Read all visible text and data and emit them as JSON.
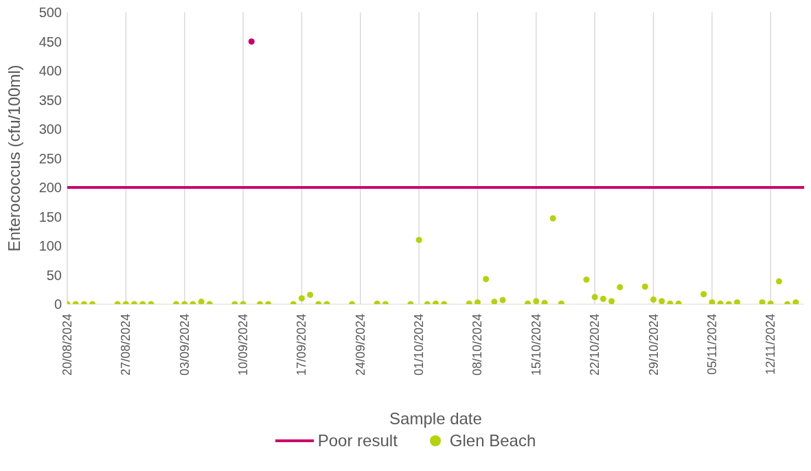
{
  "chart_data": {
    "type": "scatter",
    "xlabel": "Sample date",
    "ylabel": "Enterococcus (cfu/100ml)",
    "xlim": [
      "2024-08-20",
      "2024-11-16"
    ],
    "ylim": [
      0,
      500
    ],
    "yticks": [
      0,
      50,
      100,
      150,
      200,
      250,
      300,
      350,
      400,
      450,
      500
    ],
    "xticks": [
      {
        "value": "2024-08-20",
        "label": "20/08/2024"
      },
      {
        "value": "2024-08-27",
        "label": "27/08/2024"
      },
      {
        "value": "2024-09-03",
        "label": "03/09/2024"
      },
      {
        "value": "2024-09-10",
        "label": "10/09/2024"
      },
      {
        "value": "2024-09-17",
        "label": "17/09/2024"
      },
      {
        "value": "2024-09-24",
        "label": "24/09/2024"
      },
      {
        "value": "2024-10-01",
        "label": "01/10/2024"
      },
      {
        "value": "2024-10-08",
        "label": "08/10/2024"
      },
      {
        "value": "2024-10-15",
        "label": "15/10/2024"
      },
      {
        "value": "2024-10-22",
        "label": "22/10/2024"
      },
      {
        "value": "2024-10-29",
        "label": "29/10/2024"
      },
      {
        "value": "2024-11-05",
        "label": "05/11/2024"
      },
      {
        "value": "2024-11-12",
        "label": "12/11/2024"
      }
    ],
    "grid": "x",
    "legend": "bottom",
    "series": [
      {
        "name": "Poor result",
        "type": "line",
        "color": "#c8006e",
        "line_style": "solid",
        "x": [
          "2024-08-20",
          "2024-11-16"
        ],
        "values": [
          200,
          200
        ]
      },
      {
        "name": "Glen Beach",
        "marker": "circle",
        "color": "#b5d20a",
        "x": [
          "2024-08-20",
          "2024-08-21",
          "2024-08-22",
          "2024-08-23",
          "2024-08-26",
          "2024-08-27",
          "2024-08-28",
          "2024-08-29",
          "2024-08-30",
          "2024-09-02",
          "2024-09-03",
          "2024-09-04",
          "2024-09-05",
          "2024-09-06",
          "2024-09-09",
          "2024-09-10",
          "2024-09-11",
          "2024-09-12",
          "2024-09-13",
          "2024-09-16",
          "2024-09-17",
          "2024-09-18",
          "2024-09-19",
          "2024-09-20",
          "2024-09-23",
          "2024-09-26",
          "2024-09-27",
          "2024-09-30",
          "2024-10-01",
          "2024-10-02",
          "2024-10-03",
          "2024-10-04",
          "2024-10-07",
          "2024-10-08",
          "2024-10-09",
          "2024-10-10",
          "2024-10-11",
          "2024-10-14",
          "2024-10-15",
          "2024-10-16",
          "2024-10-17",
          "2024-10-18",
          "2024-10-21",
          "2024-10-22",
          "2024-10-23",
          "2024-10-24",
          "2024-10-25",
          "2024-10-28",
          "2024-10-29",
          "2024-10-30",
          "2024-10-31",
          "2024-11-01",
          "2024-11-04",
          "2024-11-05",
          "2024-11-06",
          "2024-11-07",
          "2024-11-08",
          "2024-11-11",
          "2024-11-12",
          "2024-11-13",
          "2024-11-14",
          "2024-11-15"
        ],
        "values": [
          0,
          0,
          0,
          0,
          0,
          0,
          0,
          0,
          0,
          0,
          0,
          0,
          4,
          0,
          0,
          0,
          450,
          0,
          0,
          0,
          10,
          16,
          0,
          0,
          0,
          1,
          0,
          0,
          110,
          0,
          1,
          0,
          1,
          3,
          43,
          4,
          7,
          1,
          5,
          2,
          147,
          1,
          42,
          12,
          9,
          5,
          29,
          30,
          8,
          5,
          1,
          1,
          17,
          3,
          1,
          0,
          3,
          3,
          1,
          39,
          0,
          3
        ],
        "colors": [
          "#b5d20a",
          "#b5d20a",
          "#b5d20a",
          "#b5d20a",
          "#b5d20a",
          "#b5d20a",
          "#b5d20a",
          "#b5d20a",
          "#b5d20a",
          "#b5d20a",
          "#b5d20a",
          "#b5d20a",
          "#b5d20a",
          "#b5d20a",
          "#b5d20a",
          "#b5d20a",
          "#c8006e",
          "#b5d20a",
          "#b5d20a",
          "#b5d20a",
          "#b5d20a",
          "#b5d20a",
          "#b5d20a",
          "#b5d20a",
          "#b5d20a",
          "#b5d20a",
          "#b5d20a",
          "#b5d20a",
          "#b5d20a",
          "#b5d20a",
          "#b5d20a",
          "#b5d20a",
          "#b5d20a",
          "#b5d20a",
          "#b5d20a",
          "#b5d20a",
          "#b5d20a",
          "#b5d20a",
          "#b5d20a",
          "#b5d20a",
          "#b5d20a",
          "#b5d20a",
          "#b5d20a",
          "#b5d20a",
          "#b5d20a",
          "#b5d20a",
          "#b5d20a",
          "#b5d20a",
          "#b5d20a",
          "#b5d20a",
          "#b5d20a",
          "#b5d20a",
          "#b5d20a",
          "#b5d20a",
          "#b5d20a",
          "#b5d20a",
          "#b5d20a",
          "#b5d20a",
          "#b5d20a",
          "#b5d20a",
          "#b5d20a",
          "#b5d20a"
        ]
      }
    ]
  }
}
